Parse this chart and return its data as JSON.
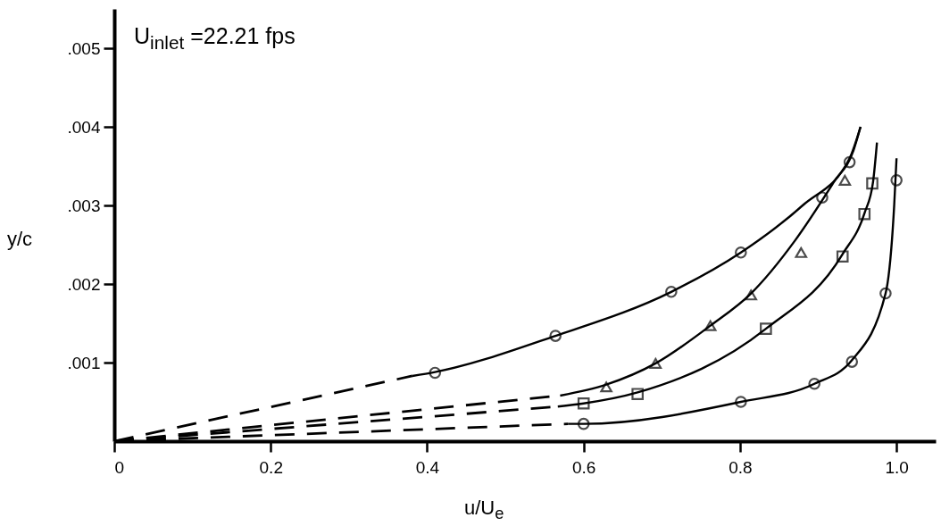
{
  "chart_data": {
    "type": "scatter",
    "xlabel": "u/U$_{e}$",
    "ylabel": "y/c",
    "annotations": [
      "U$_{inlet}$ =22.21 fps"
    ],
    "xlim": [
      0,
      1.05
    ],
    "ylim": [
      0,
      0.0055
    ],
    "xticks": [
      {
        "value": 0,
        "label": "0"
      },
      0.2,
      0.4,
      0.6,
      0.8,
      {
        "value": 1,
        "label": "1.0"
      }
    ],
    "yticks": [
      {
        "value": 0.001,
        "label": ".001"
      },
      {
        "value": 0.002,
        "label": ".002"
      },
      {
        "value": 0.003,
        "label": ".003"
      },
      {
        "value": 0.004,
        "label": ".004"
      },
      {
        "value": 0.005,
        "label": ".005"
      }
    ],
    "grid": false,
    "series": [
      {
        "marker": "circle",
        "color": "#000000",
        "x": [
          0.41,
          0.564,
          0.712,
          0.801,
          0.905,
          0.94
        ],
        "values": [
          0.00087,
          0.00134,
          0.0019,
          0.0024,
          0.0031,
          0.00355
        ]
      },
      {
        "marker": "triangle",
        "color": "#000000",
        "x": [
          0.629,
          0.692,
          0.762,
          0.814,
          0.878,
          0.934
        ],
        "values": [
          0.00069,
          0.00099,
          0.00147,
          0.00186,
          0.0024,
          0.00332
        ]
      },
      {
        "marker": "square",
        "color": "#000000",
        "x": [
          0.6,
          0.669,
          0.833,
          0.931,
          0.959,
          0.969
        ],
        "values": [
          0.00048,
          0.0006,
          0.00143,
          0.00235,
          0.00289,
          0.00328
        ]
      },
      {
        "marker": "circle",
        "color": "#000000",
        "x": [
          0.6,
          0.801,
          0.895,
          0.943,
          0.986,
          1.0
        ],
        "values": [
          0.00022,
          0.0005,
          0.00073,
          0.00101,
          0.00188,
          0.00332
        ]
      },
      {
        "type": "line",
        "line_style": "solid",
        "color": "#000000",
        "x": [
          0.381,
          0.41,
          0.564,
          0.712,
          0.801,
          0.88,
          0.94,
          0.954
        ],
        "values": [
          0.00083,
          0.00088,
          0.00134,
          0.0019,
          0.0024,
          0.003,
          0.0036,
          0.004
        ]
      },
      {
        "type": "line",
        "line_style": "solid",
        "color": "#000000",
        "x": [
          0.57,
          0.629,
          0.692,
          0.762,
          0.814,
          0.87,
          0.92,
          0.945,
          0.954
        ],
        "values": [
          0.00058,
          0.00072,
          0.00099,
          0.00147,
          0.00188,
          0.00255,
          0.0033,
          0.0037,
          0.004
        ]
      },
      {
        "type": "line",
        "line_style": "solid",
        "color": "#000000",
        "x": [
          0.567,
          0.6,
          0.669,
          0.833,
          0.931,
          0.959,
          0.97,
          0.975
        ],
        "values": [
          0.00044,
          0.00048,
          0.00062,
          0.00143,
          0.00238,
          0.0029,
          0.0033,
          0.0038
        ]
      },
      {
        "type": "line",
        "line_style": "solid",
        "color": "#000000",
        "x": [
          0.58,
          0.6,
          0.801,
          0.895,
          0.943,
          0.986,
          0.997,
          1.0
        ],
        "values": [
          0.00022,
          0.00022,
          0.0005,
          0.00073,
          0.00103,
          0.00188,
          0.003,
          0.0036
        ]
      },
      {
        "type": "line",
        "line_style": "dashed",
        "color": "#000000",
        "x": [
          0,
          0.381
        ],
        "values": [
          0,
          0.00083
        ]
      },
      {
        "type": "line",
        "line_style": "dashed",
        "color": "#000000",
        "x": [
          0,
          0.57
        ],
        "values": [
          0,
          0.00058
        ]
      },
      {
        "type": "line",
        "line_style": "dashed",
        "color": "#000000",
        "x": [
          0,
          0.567
        ],
        "values": [
          0,
          0.00044
        ]
      },
      {
        "type": "line",
        "line_style": "dashed",
        "color": "#000000",
        "x": [
          0,
          0.58
        ],
        "values": [
          0,
          0.00022
        ]
      }
    ]
  }
}
